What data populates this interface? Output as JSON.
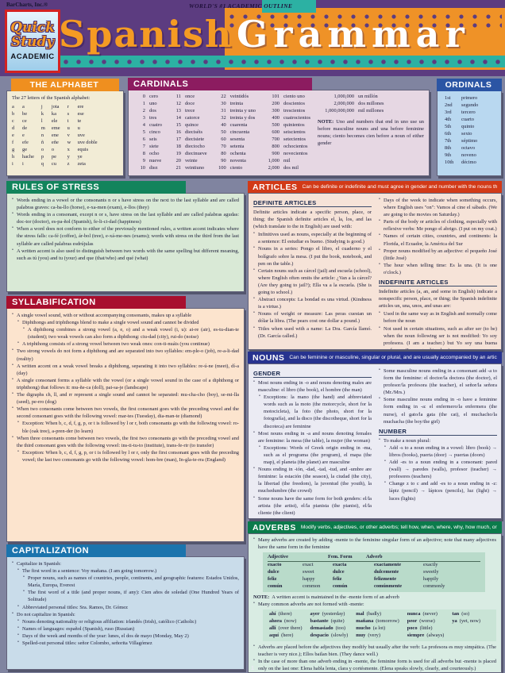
{
  "header": {
    "brand": "BarCharts, Inc.®",
    "outline": "WORLD'S #1 ACADEMIC OUTLINE",
    "logo_line1": "Quick",
    "logo_line2": "Study",
    "logo_line3": "ACADEMIC",
    "title_left": "Spanish",
    "title_right": "Grammar"
  },
  "page": {
    "number": "1"
  },
  "alphabet": {
    "title": "THE ALPHABET",
    "intro": "The 27 letters of the Spanish alphabet:",
    "col1": [
      [
        "a",
        "a"
      ],
      [
        "b",
        "be"
      ],
      [
        "c",
        "ce"
      ],
      [
        "d",
        "de"
      ],
      [
        "e",
        "e"
      ],
      [
        "f",
        "efe"
      ],
      [
        "g",
        "ge"
      ],
      [
        "h",
        "hache"
      ],
      [
        "i",
        "i"
      ]
    ],
    "col2": [
      [
        "j",
        "jota"
      ],
      [
        "k",
        "ka"
      ],
      [
        "l",
        "ele"
      ],
      [
        "m",
        "eme"
      ],
      [
        "n",
        "ene"
      ],
      [
        "ñ",
        "eñe"
      ],
      [
        "o",
        "o"
      ],
      [
        "p",
        "pe"
      ],
      [
        "q",
        "cu"
      ]
    ],
    "col3": [
      [
        "r",
        "ere"
      ],
      [
        "s",
        "ese"
      ],
      [
        "t",
        "te"
      ],
      [
        "u",
        "u"
      ],
      [
        "v",
        "uve"
      ],
      [
        "w",
        "uve doble"
      ],
      [
        "x",
        "equis"
      ],
      [
        "y",
        "ye"
      ],
      [
        "z",
        "zeta"
      ]
    ]
  },
  "cardinals": {
    "title": "CARDINALS",
    "col1": [
      [
        "0",
        "cero"
      ],
      [
        "1",
        "uno"
      ],
      [
        "2",
        "dos"
      ],
      [
        "3",
        "tres"
      ],
      [
        "4",
        "cuatro"
      ],
      [
        "5",
        "cinco"
      ],
      [
        "6",
        "seis"
      ],
      [
        "7",
        "siete"
      ],
      [
        "8",
        "ocho"
      ],
      [
        "9",
        "nueve"
      ],
      [
        "10",
        "diez"
      ]
    ],
    "col2": [
      [
        "11",
        "once"
      ],
      [
        "12",
        "doce"
      ],
      [
        "13",
        "trece"
      ],
      [
        "14",
        "catorce"
      ],
      [
        "15",
        "quince"
      ],
      [
        "16",
        "dieciséis"
      ],
      [
        "17",
        "diecisiete"
      ],
      [
        "18",
        "dieciocho"
      ],
      [
        "19",
        "diecinueve"
      ],
      [
        "20",
        "veinte"
      ],
      [
        "21",
        "veintiuno"
      ]
    ],
    "col3": [
      [
        "22",
        "veintidós"
      ],
      [
        "30",
        "treinta"
      ],
      [
        "31",
        "treinta y uno"
      ],
      [
        "32",
        "treinta y dos"
      ],
      [
        "40",
        "cuarenta"
      ],
      [
        "50",
        "cincuenta"
      ],
      [
        "60",
        "sesenta"
      ],
      [
        "70",
        "setenta"
      ],
      [
        "80",
        "ochenta"
      ],
      [
        "90",
        "noventa"
      ],
      [
        "100",
        "ciento"
      ]
    ],
    "col4": [
      [
        "101",
        "ciento uno"
      ],
      [
        "200",
        "doscientos"
      ],
      [
        "300",
        "trescientos"
      ],
      [
        "400",
        "cuatrocientos"
      ],
      [
        "500",
        "quinientos"
      ],
      [
        "600",
        "seiscientos"
      ],
      [
        "700",
        "setecientos"
      ],
      [
        "800",
        "ochocientos"
      ],
      [
        "900",
        "novecientos"
      ],
      [
        "1,000",
        "mil"
      ],
      [
        "2,000",
        "dos mil"
      ]
    ],
    "millions": [
      [
        "1,000,000",
        "un millón"
      ],
      [
        "2,000,000",
        "dos millones"
      ],
      [
        "1,000,000,000",
        "mil millones"
      ]
    ],
    "note_label": "NOTE:",
    "note_text": "Uno and numbers that end in uno use un before masculine nouns and una before feminine nouns; ciento becomes cien before a noun of either gender"
  },
  "ordinals": {
    "title": "ORDINALS",
    "pairs": [
      [
        "1st",
        "primero"
      ],
      [
        "2nd",
        "segundo"
      ],
      [
        "3rd",
        "tercero"
      ],
      [
        "4th",
        "cuarto"
      ],
      [
        "5th",
        "quinto"
      ],
      [
        "6th",
        "sexto"
      ],
      [
        "7th",
        "séptimo"
      ],
      [
        "8th",
        "octavo"
      ],
      [
        "9th",
        "noveno"
      ],
      [
        "10th",
        "décimo"
      ]
    ]
  },
  "stress": {
    "title": "RULES OF STRESS",
    "bullets": [
      {
        "l": 0,
        "t": "Words ending in a vowel or the consonants n or s have stress on the next to the last syllable and are called palabras graves: ca-ba-llo (horse), e-xa-men (exam), e-llos (they)"
      },
      {
        "l": 0,
        "t": "Words ending in a consonant, except n or s, have stress on the last syllable and are called palabras agudas: doc-tor (doctor), es-pa-ñol (Spanish), fe-li-ci-dad (happiness)"
      },
      {
        "l": 0,
        "t": "When a word does not conform to either of the previously mentioned rules, a written accent indicates where the stress falls: ca-fé (coffee), ár-bol (tree), e-xá-me-nes (exams); words with stress on the third from the last syllable are called palabras esdrújulas"
      },
      {
        "l": 0,
        "t": "A written accent is also used to distinguish between two words with the same spelling but different meaning, such as tú (you) and tu (your) and que (that/who) and qué (what)"
      }
    ]
  },
  "syllabification": {
    "title": "SYLLABIFICATION",
    "bullets": [
      {
        "l": 0,
        "t": "A single vowel sound, with or without accompanying consonants, makes up a syllable"
      },
      {
        "l": 1,
        "t": "Diphthongs and triphthongs blend to make a single vowel sound and cannot be divided"
      },
      {
        "l": 2,
        "t": "A diphthong combines a strong vowel (a, e, o) and a weak vowel (i, u): ai-re (air), es-tu-dian-te (student); two weak vowels can also form a diphthong: ciu-dad (city), rui-do (noise)"
      },
      {
        "l": 1,
        "t": "A triphthong consists of a strong vowel between two weak ones: con-ti-nuáis (you continue)"
      },
      {
        "l": 0,
        "t": "Two strong vowels do not form a diphthong and are separated into two syllables: em-ple-o (job), re-a-li-dad (reality)"
      },
      {
        "l": 0,
        "t": "A written accent on a weak vowel breaks a diphthong, separating it into two syllables: re-ú-ne (meet), dí-a (day)"
      },
      {
        "l": 0,
        "t": "A single consonant forms a syllable with the vowel (or a single vowel sound in the case of a diphthong or triphthong) that follows it: mu-ñe-ca (doll), pai-sa-je (landscape)"
      },
      {
        "l": 0,
        "t": "The digraphs ch, ll, and rr represent a single sound and cannot be separated: mu-cha-cho (boy), se-mi-lla (seed), pe-rro (dog)"
      },
      {
        "l": 0,
        "t": "When two consonants come between two vowels, the first consonant goes with the preceding vowel and the second consonant goes with the following vowel: mar-tes (Tuesday), dia-man-te (diamond)"
      },
      {
        "l": 1,
        "t": "Exception: When b, c, d, f, g, p, or t is followed by l or r, both consonants go with the following vowel: ro-ble (oak tree), a-pren-der (to learn)"
      },
      {
        "l": 0,
        "t": "When three consonants come between two vowels, the first two consonants go with the preceding vowel and the third consonant goes with the following vowel: ins-ti-tu-to (institute), trans-fe-rir (to transfer)"
      },
      {
        "l": 1,
        "t": "Exception: When b, c, d, f, g, p, or t is followed by l or r, only the first consonant goes with the preceding vowel; the last two consonants go with the following vowel: hom-bre (man), In-gla-te-rra (England)"
      }
    ]
  },
  "capitalization": {
    "title": "CAPITALIZATION",
    "bullets": [
      {
        "l": 0,
        "t": "Capitalize in Spanish:"
      },
      {
        "l": 1,
        "t": "The first word in a sentence: Voy mañana. (I am going tomorrow.)"
      },
      {
        "l": 2,
        "t": "Proper nouns, such as names of countries, people, continents, and geographic features: Estados Unidos, María, Europa, Everest"
      },
      {
        "l": 2,
        "t": "The first word of a title (and proper nouns, if any): Cien años de soledad (One Hundred Years of Solitude)"
      },
      {
        "l": 1,
        "t": "Abbreviated personal titles: Sra. Ramos, Dr. Gómez"
      },
      {
        "l": 0,
        "t": "Do not capitalize in Spanish:"
      },
      {
        "l": 1,
        "t": "Nouns denoting nationality or religious affiliation: irlandés (Irish), católico (Catholic)"
      },
      {
        "l": 1,
        "t": "Names of languages: español (Spanish), ruso (Russian)"
      },
      {
        "l": 1,
        "t": "Days of the week and months of the year: lunes, el dos de mayo (Monday, May 2)"
      },
      {
        "l": 1,
        "t": "Spelled-out personal titles: señor Colombo, señorita Villagómez"
      }
    ]
  },
  "articles": {
    "title": "ARTICLES",
    "tagline": "Can be definite or indefinite and must agree in gender and number with the nouns they modify",
    "definite_heading": "DEFINITE ARTICLES",
    "definite_intro": "Definite articles indicate a specific person, place, or thing; the Spanish definite articles el, la, los, and las (which translate to the in English) are used with:",
    "definite_col1": [
      {
        "l": 0,
        "t": "Infinitives used as nouns, especially at the beginning of a sentence: El estudiar es bueno. (Studying is good.)"
      },
      {
        "l": 0,
        "t": "Nouns in a series: Pongo el libro, el cuaderno y el bolígrafo sobre la mesa. (I put the book, notebook, and pen on the table.)"
      },
      {
        "l": 0,
        "t": "Certain nouns such as cárcel (jail) and escuela (school), where English often omits the article: ¿Van a la cárcel? (Are they going to jail?); Ella va a la escuela. (She is going to school.)"
      },
      {
        "l": 0,
        "t": "Abstract concepts: La bondad es una virtud. (Kindness is a virtue.)"
      },
      {
        "l": 0,
        "t": "Nouns of weight or measure: Las peras cuestan un dólar la libra. (The pears cost one dollar a pound.)"
      },
      {
        "l": 0,
        "t": "Titles when used with a name: La Dra. García llamó. (Dr. García called.)"
      }
    ],
    "definite_col2": [
      {
        "l": 0,
        "t": "Days of the week to indicate when something occurs, where English uses \"on\": Vamos al cine el sábado. (We are going to the movies on Saturday.)"
      },
      {
        "l": 0,
        "t": "Parts of the body or articles of clothing, especially with reflexive verbs: Me pongo el abrigo. (I put on my coat.)"
      },
      {
        "l": 0,
        "t": "Names of certain cities, countries, and continents: la Florida, el Ecuador, la América del Sur"
      },
      {
        "l": 0,
        "t": "Proper nouns modified by an adjective: el pequeño José (little José)"
      },
      {
        "l": 0,
        "t": "The hour when telling time: Es la una. (It is one o'clock.)"
      }
    ],
    "indefinite_heading": "INDEFINITE ARTICLES",
    "indefinite_intro": "Indefinite articles (a, an, and some in English) indicate a nonspecific person, place, or thing; the Spanish indefinite articles un, una, unos, and unas are:",
    "indefinite_bullets": [
      {
        "l": 0,
        "t": "Used in the same way as in English and normally come before the noun"
      },
      {
        "l": 0,
        "t": "Not used in certain situations, such as after ser (to be) when the noun following ser is not modified: Yo soy profesora. (I am a teacher.) but Yo soy una buena profesora. (I am a good teacher.)"
      }
    ]
  },
  "nouns": {
    "title": "NOUNS",
    "tagline": "Can be feminine or masculine, singular or plural, and are usually accompanied by an article",
    "gender_heading": "GENDER",
    "gender_col1": [
      {
        "l": 0,
        "t": "Most nouns ending in -o and nouns denoting males are masculine: el libro (the book), el hombre (the man)"
      },
      {
        "l": 1,
        "t": "Exceptions: la mano (the hand) and abbreviated words such as la moto (the motorcycle, short for la motocicleta), la foto (the photo, short for la fotografía), and la disco (the discotheque, short for la discoteca) are feminine"
      },
      {
        "l": 0,
        "t": "Most nouns ending in -a and nouns denoting females are feminine: la mesa (the table), la mujer (the woman)"
      },
      {
        "l": 1,
        "t": "Exceptions: Words of Greek origin ending in -ma, such as el programa (the program), el mapa (the map), el planeta (the planet) are masculine"
      },
      {
        "l": 0,
        "t": "Nouns ending in -ión, -dad, -tad, -tud, and -umbre are feminine: la estación (the season), la ciudad (the city), la libertad (the freedom), la juventud (the youth), la muchedumbre (the crowd)"
      },
      {
        "l": 0,
        "t": "Some nouns have the same form for both genders: el/la artista (the artist), el/la pianista (the pianist), el/la cliente (the client)"
      }
    ],
    "gender_col2": [
      {
        "l": 0,
        "t": "Some masculine nouns ending in a consonant add -a to form the feminine: el doctor/la doctora (the doctor), el profesor/la profesora (the teacher), el señor/la señora (Mr./Mrs.)"
      },
      {
        "l": 0,
        "t": "Some masculine nouns ending in -o have a feminine form ending in -a: el enfermero/la enfermera (the nurse), el gato/la gata (the cat), el muchacho/la muchacha (the boy/the girl)"
      }
    ],
    "number_heading": "NUMBER",
    "number_bullets": [
      {
        "l": 0,
        "t": "To make a noun plural:"
      },
      {
        "l": 1,
        "t": "Add -s to a noun ending in a vowel: libro (book) → libros (books), puerta (door) → puertas (doors)"
      },
      {
        "l": 1,
        "t": "Add -es to a noun ending in a consonant: pared (wall) → paredes (walls), profesor (teacher) → profesores (teachers)"
      },
      {
        "l": 1,
        "t": "Change z to c and add -es to a noun ending in -z: lápiz (pencil) → lápices (pencils), luz (light) → luces (lights)"
      }
    ]
  },
  "adverbs": {
    "title": "ADVERBS",
    "tagline": "Modify verbs, adjectives, or other adverbs; tell how, when, where, why, how much, or how often",
    "intro_bullet": "Many adverbs are created by adding -mente to the feminine singular form of an adjective; note that many adjectives have the same form in the feminine",
    "mente_headers": [
      "Adjective",
      "Fem. Form",
      "Adverb"
    ],
    "mente_rows": [
      [
        "exacto",
        "exact",
        "exacta",
        "exactamente",
        "exactly"
      ],
      [
        "dulce",
        "sweet",
        "dulce",
        "dulcemente",
        "sweetly"
      ],
      [
        "feliz",
        "happy",
        "feliz",
        "felizmente",
        "happily"
      ],
      [
        "común",
        "common",
        "común",
        "comúnmente",
        "commonly"
      ]
    ],
    "note_label": "NOTE:",
    "note_text": "A written accent is maintained in the -mente form of an adverb",
    "common_intro": "Many common adverbs are not formed with -mente:",
    "common_col1": [
      [
        "ahí",
        "(there)"
      ],
      [
        "ahora",
        "(now)"
      ],
      [
        "allí",
        "(over there)"
      ],
      [
        "aquí",
        "(here)"
      ]
    ],
    "common_col2": [
      [
        "ayer",
        "(yesterday)"
      ],
      [
        "bastante",
        "(quite)"
      ],
      [
        "demasiado",
        "(too)"
      ],
      [
        "despacio",
        "(slowly)"
      ]
    ],
    "common_col3": [
      [
        "mal",
        "(badly)"
      ],
      [
        "mañana",
        "(tomorrow)"
      ],
      [
        "mucho",
        "(a lot)"
      ],
      [
        "muy",
        "(very)"
      ]
    ],
    "common_col4": [
      [
        "nunca",
        "(never)"
      ],
      [
        "peor",
        "(worse)"
      ],
      [
        "poco",
        "(little)"
      ],
      [
        "siempre",
        "(always)"
      ]
    ],
    "common_col5": [
      [
        "tan",
        "(so)"
      ],
      [
        "ya",
        "(yet, now)"
      ]
    ],
    "bullets": [
      {
        "l": 0,
        "t": "Adverbs are placed before the adjectives they modify but usually after the verb: La profesora es muy simpática. (The teacher is very nice.); Ellos bailan bien. (They dance well.)"
      },
      {
        "l": 0,
        "t": "In the case of more than one adverb ending in -mente, the feminine form is used for all adverbs but -mente is placed only on the last one: Elena habla lenta, clara y cortésmente. (Elena speaks slowly, clearly, and courteously.)"
      }
    ]
  }
}
